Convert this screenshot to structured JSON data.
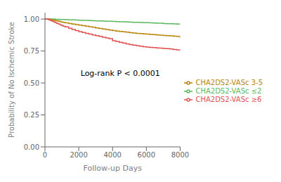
{
  "chart_data": {
    "type": "step",
    "xlabel": "Follow-up Days",
    "ylabel": "Probability of No Ischemic Stroke",
    "xlim": [
      0,
      8000
    ],
    "ylim": [
      0.0,
      1.05
    ],
    "xticks": [
      0,
      2000,
      4000,
      6000,
      8000
    ],
    "yticks": [
      {
        "value": 0.0,
        "label": "0.00"
      },
      {
        "value": 0.25,
        "label": "0.25"
      },
      {
        "value": 0.5,
        "label": "0.50"
      },
      {
        "value": 0.75,
        "label": "0.75"
      },
      {
        "value": 1.0,
        "label": "1.00"
      }
    ],
    "legend": "right",
    "annotations": [
      {
        "text": "Log-rank P < 0.0001",
        "x": 1900,
        "y": 0.575
      }
    ],
    "series": [
      {
        "name": "CHA2DS2-VASc ≤2",
        "color": "#5CB85C",
        "x": [
          0,
          50,
          100,
          200,
          300,
          400,
          600,
          800,
          1000,
          1200,
          1400,
          1600,
          1800,
          2000,
          2200,
          2400,
          2600,
          2800,
          3000,
          3200,
          3400,
          3600,
          3800,
          4000,
          4200,
          4400,
          4600,
          4800,
          5000,
          5200,
          5400,
          5600,
          5800,
          6000,
          6200,
          6400,
          6600,
          6800,
          7000,
          7200,
          7400,
          7600,
          7800,
          8000
        ],
        "values": [
          1.0,
          1.0,
          1.0,
          1.0,
          1.0,
          1.0,
          0.998,
          0.997,
          0.996,
          0.995,
          0.994,
          0.993,
          0.992,
          0.991,
          0.99,
          0.989,
          0.988,
          0.987,
          0.986,
          0.985,
          0.984,
          0.983,
          0.982,
          0.981,
          0.98,
          0.979,
          0.978,
          0.977,
          0.976,
          0.975,
          0.974,
          0.973,
          0.972,
          0.971,
          0.97,
          0.969,
          0.968,
          0.967,
          0.965,
          0.964,
          0.963,
          0.962,
          0.961,
          0.96
        ]
      },
      {
        "name": "CHA2DS2-VASc 3-5",
        "color": "#B8860B",
        "x": [
          0,
          50,
          100,
          200,
          300,
          400,
          500,
          600,
          700,
          800,
          900,
          1000,
          1100,
          1200,
          1400,
          1600,
          1800,
          2000,
          2200,
          2400,
          2600,
          2800,
          3000,
          3200,
          3400,
          3600,
          3800,
          4000,
          4200,
          4400,
          4600,
          4800,
          5000,
          5200,
          5400,
          5600,
          5800,
          6000,
          6200,
          6400,
          6600,
          6800,
          7000,
          7200,
          7400,
          7600,
          7800,
          8000
        ],
        "values": [
          1.0,
          1.0,
          1.0,
          0.998,
          0.996,
          0.994,
          0.991,
          0.988,
          0.985,
          0.982,
          0.979,
          0.976,
          0.973,
          0.97,
          0.965,
          0.96,
          0.956,
          0.952,
          0.948,
          0.944,
          0.94,
          0.936,
          0.93,
          0.926,
          0.922,
          0.918,
          0.914,
          0.91,
          0.906,
          0.903,
          0.9,
          0.897,
          0.894,
          0.891,
          0.888,
          0.886,
          0.884,
          0.882,
          0.88,
          0.878,
          0.876,
          0.874,
          0.872,
          0.87,
          0.868,
          0.866,
          0.864,
          0.852
        ]
      },
      {
        "name": "CHA2DS2-VASc ≥6",
        "color": "#E05050",
        "x": [
          0,
          50,
          100,
          200,
          300,
          400,
          500,
          600,
          700,
          800,
          900,
          1000,
          1100,
          1200,
          1400,
          1600,
          1800,
          2000,
          2200,
          2400,
          2600,
          2800,
          3000,
          3200,
          3400,
          3600,
          3800,
          4000,
          4200,
          4400,
          4600,
          4800,
          5000,
          5200,
          5400,
          5600,
          5800,
          6000,
          6200,
          6400,
          6600,
          6800,
          7000,
          7200,
          7400,
          7600,
          7800,
          8000
        ],
        "values": [
          1.0,
          1.0,
          1.0,
          0.995,
          0.99,
          0.984,
          0.978,
          0.972,
          0.966,
          0.96,
          0.954,
          0.948,
          0.943,
          0.938,
          0.928,
          0.918,
          0.91,
          0.902,
          0.895,
          0.888,
          0.882,
          0.876,
          0.87,
          0.864,
          0.858,
          0.852,
          0.846,
          0.83,
          0.824,
          0.818,
          0.812,
          0.806,
          0.8,
          0.796,
          0.792,
          0.788,
          0.784,
          0.78,
          0.778,
          0.776,
          0.774,
          0.772,
          0.77,
          0.768,
          0.766,
          0.762,
          0.758,
          0.752
        ]
      }
    ]
  }
}
